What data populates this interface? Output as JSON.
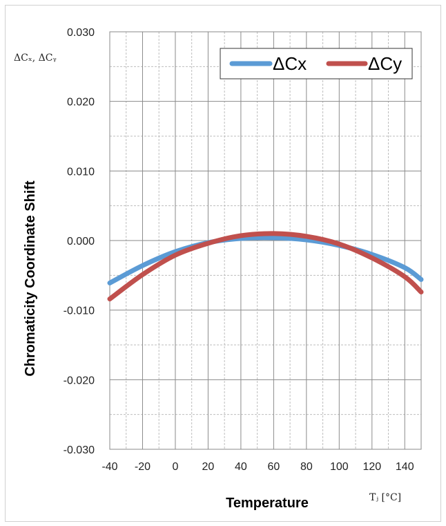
{
  "chart_data": {
    "type": "line",
    "xlabel": "Temperature",
    "x_unit": "Tⱼ [°C]",
    "ylabel": "Chromaticity Coordinate Shift",
    "y_unit": "ΔCₓ, ΔCᵧ",
    "xlim": [
      -40,
      150
    ],
    "ylim": [
      -0.03,
      0.03
    ],
    "x_ticks": [
      -40,
      -20,
      0,
      20,
      40,
      60,
      80,
      100,
      120,
      140
    ],
    "y_ticks": [
      0.03,
      0.02,
      0.01,
      0.0,
      -0.01,
      -0.02,
      -0.03
    ],
    "y_tick_labels": [
      "0.030",
      "0.020",
      "0.010",
      "0.000",
      "-0.010",
      "-0.020",
      "-0.030"
    ],
    "grid": true,
    "legend_position": "top-right",
    "series": [
      {
        "name": "ΔCx",
        "color": "#5b9bd5",
        "x": [
          -40,
          -20,
          0,
          20,
          40,
          60,
          80,
          100,
          120,
          140,
          150
        ],
        "y": [
          -0.0061,
          -0.0036,
          -0.0016,
          -0.0003,
          0.0003,
          0.0004,
          0.0001,
          -0.0007,
          -0.002,
          -0.0039,
          -0.0056
        ]
      },
      {
        "name": "ΔCy",
        "color": "#c0504d",
        "x": [
          -40,
          -20,
          0,
          20,
          40,
          60,
          80,
          100,
          120,
          140,
          150
        ],
        "y": [
          -0.0084,
          -0.0049,
          -0.0021,
          -0.0004,
          0.0007,
          0.001,
          0.0006,
          -0.0005,
          -0.0025,
          -0.0052,
          -0.0074
        ]
      }
    ]
  }
}
